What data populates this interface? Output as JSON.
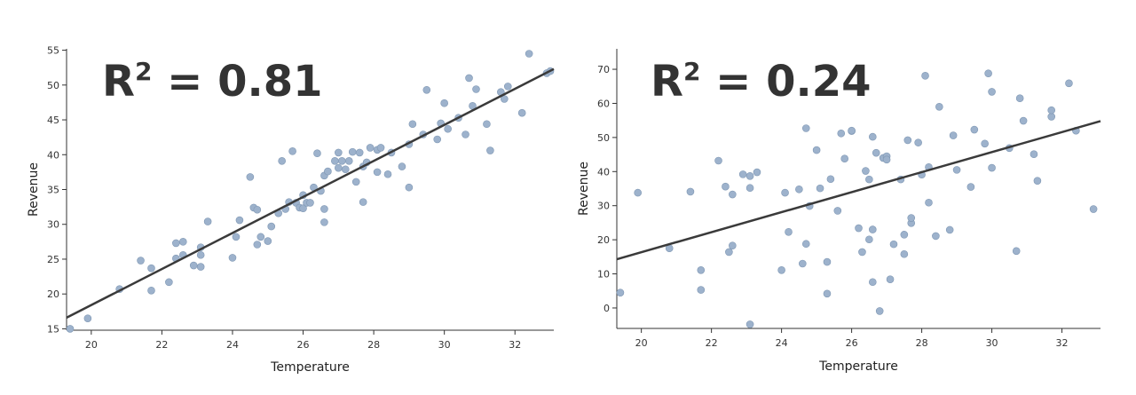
{
  "chart_data": [
    {
      "type": "scatter",
      "annotation": {
        "prefix": "R",
        "sup": "2",
        "suffix": " = 0.81"
      },
      "xlabel": "Temperature",
      "ylabel": "Revenue",
      "xlim": [
        19.3,
        33.1
      ],
      "ylim": [
        14.8,
        55.2
      ],
      "xticks": [
        20,
        22,
        24,
        26,
        28,
        30,
        32
      ],
      "yticks": [
        15,
        20,
        25,
        30,
        35,
        40,
        45,
        50,
        55
      ],
      "grid": false,
      "fit_line": {
        "x": [
          19.3,
          33.1
        ],
        "y": [
          16.6,
          52.3
        ]
      },
      "point_color": "#9db2cc",
      "x": [
        19.4,
        19.9,
        20.8,
        21.4,
        21.7,
        21.7,
        22.2,
        22.4,
        22.4,
        22.6,
        22.6,
        22.9,
        23.1,
        23.1,
        23.1,
        23.3,
        24.0,
        24.1,
        24.2,
        24.5,
        24.6,
        24.7,
        24.7,
        24.8,
        25.0,
        25.1,
        25.3,
        25.4,
        25.5,
        25.6,
        25.7,
        25.8,
        25.9,
        26.0,
        26.0,
        26.1,
        26.2,
        26.3,
        26.4,
        26.5,
        26.6,
        26.6,
        26.6,
        26.7,
        26.9,
        27.0,
        27.0,
        27.1,
        27.2,
        27.3,
        27.4,
        27.5,
        27.6,
        27.7,
        27.7,
        27.8,
        27.9,
        28.1,
        28.1,
        28.2,
        28.4,
        28.5,
        28.8,
        29.0,
        29.0,
        29.1,
        29.4,
        29.5,
        29.8,
        29.9,
        30.0,
        30.1,
        30.4,
        30.6,
        30.7,
        30.8,
        30.9,
        31.2,
        31.3,
        31.6,
        31.7,
        31.8,
        32.2,
        32.4,
        32.9,
        33.0
      ],
      "y": [
        15.0,
        16.5,
        20.7,
        24.8,
        20.5,
        23.7,
        21.7,
        25.1,
        27.3,
        25.6,
        27.5,
        24.1,
        23.9,
        25.6,
        26.7,
        30.4,
        25.2,
        28.2,
        30.6,
        36.8,
        32.4,
        27.1,
        32.1,
        28.2,
        27.6,
        29.7,
        31.6,
        39.1,
        32.2,
        33.2,
        40.5,
        33.1,
        32.4,
        34.2,
        32.3,
        33.1,
        33.1,
        35.3,
        40.2,
        34.8,
        30.3,
        37.0,
        32.2,
        37.6,
        39.1,
        38.1,
        40.3,
        39.1,
        37.9,
        39.1,
        40.4,
        36.1,
        40.3,
        38.3,
        33.2,
        38.9,
        41.0,
        40.7,
        37.5,
        41.0,
        37.2,
        40.3,
        38.3,
        35.3,
        41.5,
        44.4,
        42.9,
        49.3,
        42.2,
        44.5,
        47.4,
        43.7,
        45.3,
        42.9,
        51.0,
        47.0,
        49.4,
        44.4,
        40.6,
        49.0,
        48.0,
        49.8,
        46.0,
        54.5,
        51.7,
        52.0
      ]
    },
    {
      "type": "scatter",
      "annotation": {
        "prefix": "R",
        "sup": "2",
        "suffix": " = 0.24"
      },
      "xlabel": "Temperature",
      "ylabel": "Revenue",
      "xlim": [
        19.3,
        33.1
      ],
      "ylim": [
        -6,
        76
      ],
      "xticks": [
        20,
        22,
        24,
        26,
        28,
        30,
        32
      ],
      "yticks": [
        0,
        10,
        20,
        30,
        40,
        50,
        60,
        70
      ],
      "grid": false,
      "fit_line": {
        "x": [
          19.3,
          33.1
        ],
        "y": [
          14.3,
          54.8
        ]
      },
      "point_color": "#9db2cc",
      "x": [
        19.4,
        19.9,
        20.8,
        21.4,
        21.7,
        21.7,
        22.2,
        22.4,
        22.5,
        22.6,
        22.6,
        22.9,
        23.1,
        23.1,
        23.1,
        23.3,
        24.0,
        24.1,
        24.2,
        24.5,
        24.6,
        24.7,
        24.7,
        24.8,
        25.0,
        25.1,
        25.3,
        25.3,
        25.4,
        25.6,
        25.7,
        25.8,
        26.0,
        26.0,
        26.2,
        26.3,
        26.4,
        26.5,
        26.5,
        26.6,
        26.6,
        26.6,
        26.7,
        26.8,
        26.9,
        27.0,
        27.0,
        27.1,
        27.2,
        27.4,
        27.5,
        27.5,
        27.6,
        27.7,
        27.7,
        27.9,
        28.0,
        28.1,
        28.2,
        28.2,
        28.4,
        28.5,
        28.8,
        28.9,
        29.0,
        29.4,
        29.5,
        29.8,
        29.9,
        30.0,
        30.0,
        30.5,
        30.7,
        30.8,
        30.9,
        31.2,
        31.3,
        31.7,
        31.7,
        32.2,
        32.4,
        32.9
      ],
      "y": [
        4.5,
        33.8,
        17.5,
        34.1,
        5.3,
        11.1,
        43.2,
        35.6,
        16.4,
        18.3,
        33.3,
        39.2,
        38.7,
        35.2,
        -4.8,
        39.8,
        11.1,
        33.8,
        22.3,
        34.8,
        13.0,
        18.8,
        52.7,
        29.9,
        46.3,
        35.1,
        4.2,
        13.5,
        37.8,
        28.5,
        51.2,
        43.8,
        51.9,
        52.0,
        23.4,
        16.4,
        40.2,
        20.1,
        37.7,
        50.2,
        23.0,
        7.6,
        45.5,
        -0.9,
        44.0,
        44.5,
        43.5,
        8.4,
        18.7,
        37.7,
        21.5,
        15.8,
        49.2,
        24.9,
        26.4,
        48.5,
        39.1,
        68.1,
        41.3,
        30.9,
        21.1,
        59.0,
        22.9,
        50.6,
        40.5,
        35.5,
        52.3,
        48.2,
        68.8,
        63.4,
        41.1,
        46.9,
        16.7,
        61.5,
        54.9,
        45.1,
        37.3,
        56.1,
        58.0,
        65.9,
        52.0,
        29.0
      ]
    }
  ]
}
